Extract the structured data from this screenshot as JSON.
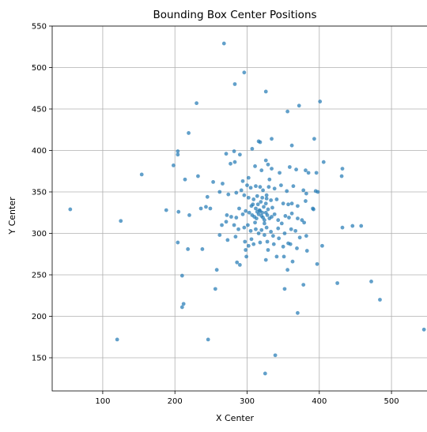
{
  "chart_data": {
    "type": "scatter",
    "title": "Bounding Box Center Positions",
    "xlabel": "X Center",
    "ylabel": "Y Center",
    "xlim": [
      30,
      570
    ],
    "ylim": [
      110,
      550
    ],
    "xticks": [
      100,
      200,
      300,
      400,
      500
    ],
    "yticks": [
      150,
      200,
      250,
      300,
      350,
      400,
      450,
      500,
      550
    ],
    "grid": true,
    "marker_color": "#1f77b4",
    "marker_alpha": 0.7,
    "points": [
      [
        268,
        529
      ],
      [
        296,
        494
      ],
      [
        283,
        480
      ],
      [
        326,
        471
      ],
      [
        230,
        457
      ],
      [
        401,
        459
      ],
      [
        372,
        454
      ],
      [
        356,
        447
      ],
      [
        219,
        421
      ],
      [
        334,
        414
      ],
      [
        393,
        414
      ],
      [
        316,
        411
      ],
      [
        318,
        410
      ],
      [
        362,
        406
      ],
      [
        307,
        402
      ],
      [
        204,
        399
      ],
      [
        204,
        395
      ],
      [
        282,
        399
      ],
      [
        271,
        396
      ],
      [
        290,
        395
      ],
      [
        198,
        382
      ],
      [
        154,
        371
      ],
      [
        232,
        369
      ],
      [
        214,
        365
      ],
      [
        253,
        362
      ],
      [
        266,
        360
      ],
      [
        294,
        363
      ],
      [
        302,
        367
      ],
      [
        331,
        365
      ],
      [
        381,
        376
      ],
      [
        385,
        373
      ],
      [
        396,
        373
      ],
      [
        406,
        386
      ],
      [
        432,
        378
      ],
      [
        431,
        369
      ],
      [
        359,
        380
      ],
      [
        368,
        377
      ],
      [
        283,
        386
      ],
      [
        277,
        384
      ],
      [
        326,
        388
      ],
      [
        329,
        383
      ],
      [
        311,
        381
      ],
      [
        320,
        376
      ],
      [
        334,
        378
      ],
      [
        345,
        373
      ],
      [
        300,
        358
      ],
      [
        305,
        355
      ],
      [
        312,
        357
      ],
      [
        318,
        356
      ],
      [
        322,
        352
      ],
      [
        330,
        356
      ],
      [
        338,
        354
      ],
      [
        347,
        358
      ],
      [
        355,
        351
      ],
      [
        364,
        357
      ],
      [
        378,
        352
      ],
      [
        395,
        351
      ],
      [
        398,
        350
      ],
      [
        382,
        348
      ],
      [
        245,
        344
      ],
      [
        262,
        350
      ],
      [
        274,
        347
      ],
      [
        285,
        349
      ],
      [
        292,
        352
      ],
      [
        296,
        346
      ],
      [
        302,
        343
      ],
      [
        309,
        341
      ],
      [
        314,
        345
      ],
      [
        321,
        343
      ],
      [
        327,
        346
      ],
      [
        333,
        340
      ],
      [
        341,
        341
      ],
      [
        350,
        336
      ],
      [
        357,
        335
      ],
      [
        362,
        336
      ],
      [
        370,
        333
      ],
      [
        381,
        339
      ],
      [
        391,
        330
      ],
      [
        392,
        329
      ],
      [
        55,
        329
      ],
      [
        188,
        328
      ],
      [
        205,
        326
      ],
      [
        220,
        322
      ],
      [
        236,
        330
      ],
      [
        243,
        332
      ],
      [
        249,
        330
      ],
      [
        272,
        322
      ],
      [
        278,
        320
      ],
      [
        285,
        319
      ],
      [
        289,
        330
      ],
      [
        294,
        323
      ],
      [
        298,
        327
      ],
      [
        303,
        325
      ],
      [
        307,
        322
      ],
      [
        310,
        320
      ],
      [
        313,
        318
      ],
      [
        316,
        323
      ],
      [
        318,
        327
      ],
      [
        320,
        321
      ],
      [
        322,
        319
      ],
      [
        324,
        316
      ],
      [
        326,
        325
      ],
      [
        328,
        322
      ],
      [
        331,
        318
      ],
      [
        334,
        320
      ],
      [
        338,
        323
      ],
      [
        343,
        316
      ],
      [
        348,
        312
      ],
      [
        353,
        321
      ],
      [
        358,
        319
      ],
      [
        362,
        324
      ],
      [
        370,
        318
      ],
      [
        376,
        316
      ],
      [
        379,
        313
      ],
      [
        125,
        315
      ],
      [
        432,
        307
      ],
      [
        446,
        309
      ],
      [
        458,
        309
      ],
      [
        265,
        310
      ],
      [
        271,
        314
      ],
      [
        282,
        310
      ],
      [
        288,
        305
      ],
      [
        296,
        307
      ],
      [
        301,
        310
      ],
      [
        305,
        303
      ],
      [
        312,
        305
      ],
      [
        316,
        300
      ],
      [
        320,
        304
      ],
      [
        324,
        298
      ],
      [
        327,
        307
      ],
      [
        333,
        302
      ],
      [
        336,
        297
      ],
      [
        343,
        306
      ],
      [
        352,
        300
      ],
      [
        361,
        305
      ],
      [
        367,
        303
      ],
      [
        262,
        298
      ],
      [
        273,
        292
      ],
      [
        284,
        296
      ],
      [
        297,
        290
      ],
      [
        302,
        285
      ],
      [
        306,
        293
      ],
      [
        318,
        289
      ],
      [
        328,
        290
      ],
      [
        337,
        287
      ],
      [
        344,
        294
      ],
      [
        357,
        288
      ],
      [
        373,
        295
      ],
      [
        382,
        297
      ],
      [
        204,
        289
      ],
      [
        218,
        281
      ],
      [
        238,
        281
      ],
      [
        298,
        280
      ],
      [
        309,
        287
      ],
      [
        329,
        280
      ],
      [
        350,
        284
      ],
      [
        360,
        287
      ],
      [
        369,
        282
      ],
      [
        404,
        285
      ],
      [
        299,
        272
      ],
      [
        326,
        268
      ],
      [
        341,
        272
      ],
      [
        351,
        272
      ],
      [
        363,
        266
      ],
      [
        383,
        279
      ],
      [
        397,
        263
      ],
      [
        258,
        256
      ],
      [
        286,
        265
      ],
      [
        290,
        262
      ],
      [
        356,
        256
      ],
      [
        210,
        249
      ],
      [
        378,
        238
      ],
      [
        425,
        240
      ],
      [
        472,
        242
      ],
      [
        256,
        233
      ],
      [
        352,
        233
      ],
      [
        212,
        215
      ],
      [
        210,
        211
      ],
      [
        370,
        204
      ],
      [
        484,
        220
      ],
      [
        120,
        172
      ],
      [
        246,
        172
      ],
      [
        339,
        153
      ],
      [
        325,
        131
      ],
      [
        545,
        184
      ],
      [
        315,
        335
      ],
      [
        319,
        338
      ],
      [
        323,
        332
      ],
      [
        326,
        336
      ],
      [
        312,
        330
      ],
      [
        308,
        335
      ],
      [
        317,
        328
      ],
      [
        321,
        325
      ],
      [
        329,
        329
      ],
      [
        306,
        333
      ],
      [
        314,
        326
      ],
      [
        327,
        342
      ],
      [
        324,
        312
      ],
      [
        311,
        313
      ],
      [
        335,
        331
      ]
    ]
  }
}
